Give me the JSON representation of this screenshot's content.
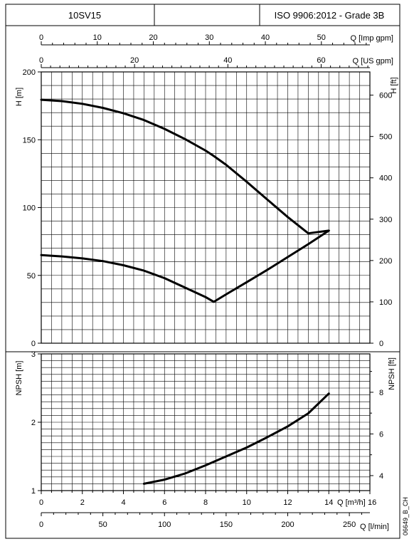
{
  "header": {
    "model": "10SV15",
    "empty_cell": "",
    "standard": "ISO 9906:2012 - Grade 3B"
  },
  "code": "06649_B_CH",
  "chart_data": [
    {
      "type": "line",
      "name": "head-chart",
      "top_axes": [
        {
          "label": "Q [Imp gpm]",
          "ticks": [
            "0",
            "10",
            "20",
            "30",
            "40",
            "50"
          ],
          "values": [
            0,
            10,
            20,
            30,
            40,
            50
          ]
        },
        {
          "label": "Q [US gpm]",
          "ticks": [
            "0",
            "20",
            "40",
            "60"
          ],
          "values": [
            0,
            20,
            40,
            60
          ]
        }
      ],
      "xlim": [
        0,
        16
      ],
      "ylabel_left": "H [m]",
      "ylabel_right": "H [ft]",
      "ylim": [
        0,
        200
      ],
      "yticks_left": [
        0,
        50,
        100,
        150,
        200
      ],
      "ylim_right": [
        0,
        656.17
      ],
      "yticks_right": [
        0,
        100,
        200,
        300,
        400,
        500,
        600
      ],
      "grid": true,
      "series": [
        {
          "x": [
            0,
            1,
            2,
            3,
            4,
            5,
            6,
            7,
            8,
            8.4,
            9,
            10,
            11,
            12,
            13,
            14
          ],
          "y": [
            179.5,
            178.5,
            176.5,
            173.5,
            169.5,
            164.5,
            158,
            150.5,
            142,
            138,
            131.5,
            119,
            106,
            93,
            81,
            83
          ]
        },
        {
          "x": [
            0,
            1,
            2,
            3,
            4,
            5,
            6,
            7,
            8,
            8.4,
            9,
            10,
            11,
            12,
            13,
            14
          ],
          "y": [
            65,
            64,
            62.5,
            60.5,
            57.5,
            53.5,
            48,
            41,
            34,
            30.5,
            36,
            45,
            54,
            63.5,
            73,
            83
          ]
        }
      ]
    },
    {
      "type": "line",
      "name": "npsh-chart",
      "bottom_axes": [
        {
          "label": "Q [m³/h]",
          "ticks": [
            "0",
            "2",
            "4",
            "6",
            "8",
            "10",
            "12",
            "14",
            "16"
          ],
          "values": [
            0,
            2,
            4,
            6,
            8,
            10,
            12,
            14,
            16
          ]
        },
        {
          "label": "Q [l/min]",
          "ticks": [
            "0",
            "50",
            "100",
            "150",
            "200",
            "250"
          ],
          "values": [
            0,
            50,
            100,
            150,
            200,
            250
          ]
        }
      ],
      "xlim": [
        0,
        16
      ],
      "ylabel_left": "NPSH [m]",
      "ylabel_right": "NPSH [ft]",
      "ylim": [
        1,
        3
      ],
      "yticks_left": [
        1,
        2,
        3
      ],
      "ylim_right": [
        3.2808,
        9.8425
      ],
      "yticks_right": [
        4,
        6,
        8
      ],
      "grid": true,
      "series": [
        {
          "x": [
            5,
            6,
            7,
            8,
            9,
            10,
            11,
            12,
            13,
            14
          ],
          "y": [
            1.1,
            1.16,
            1.25,
            1.37,
            1.5,
            1.63,
            1.78,
            1.94,
            2.13,
            2.42
          ]
        }
      ]
    }
  ]
}
